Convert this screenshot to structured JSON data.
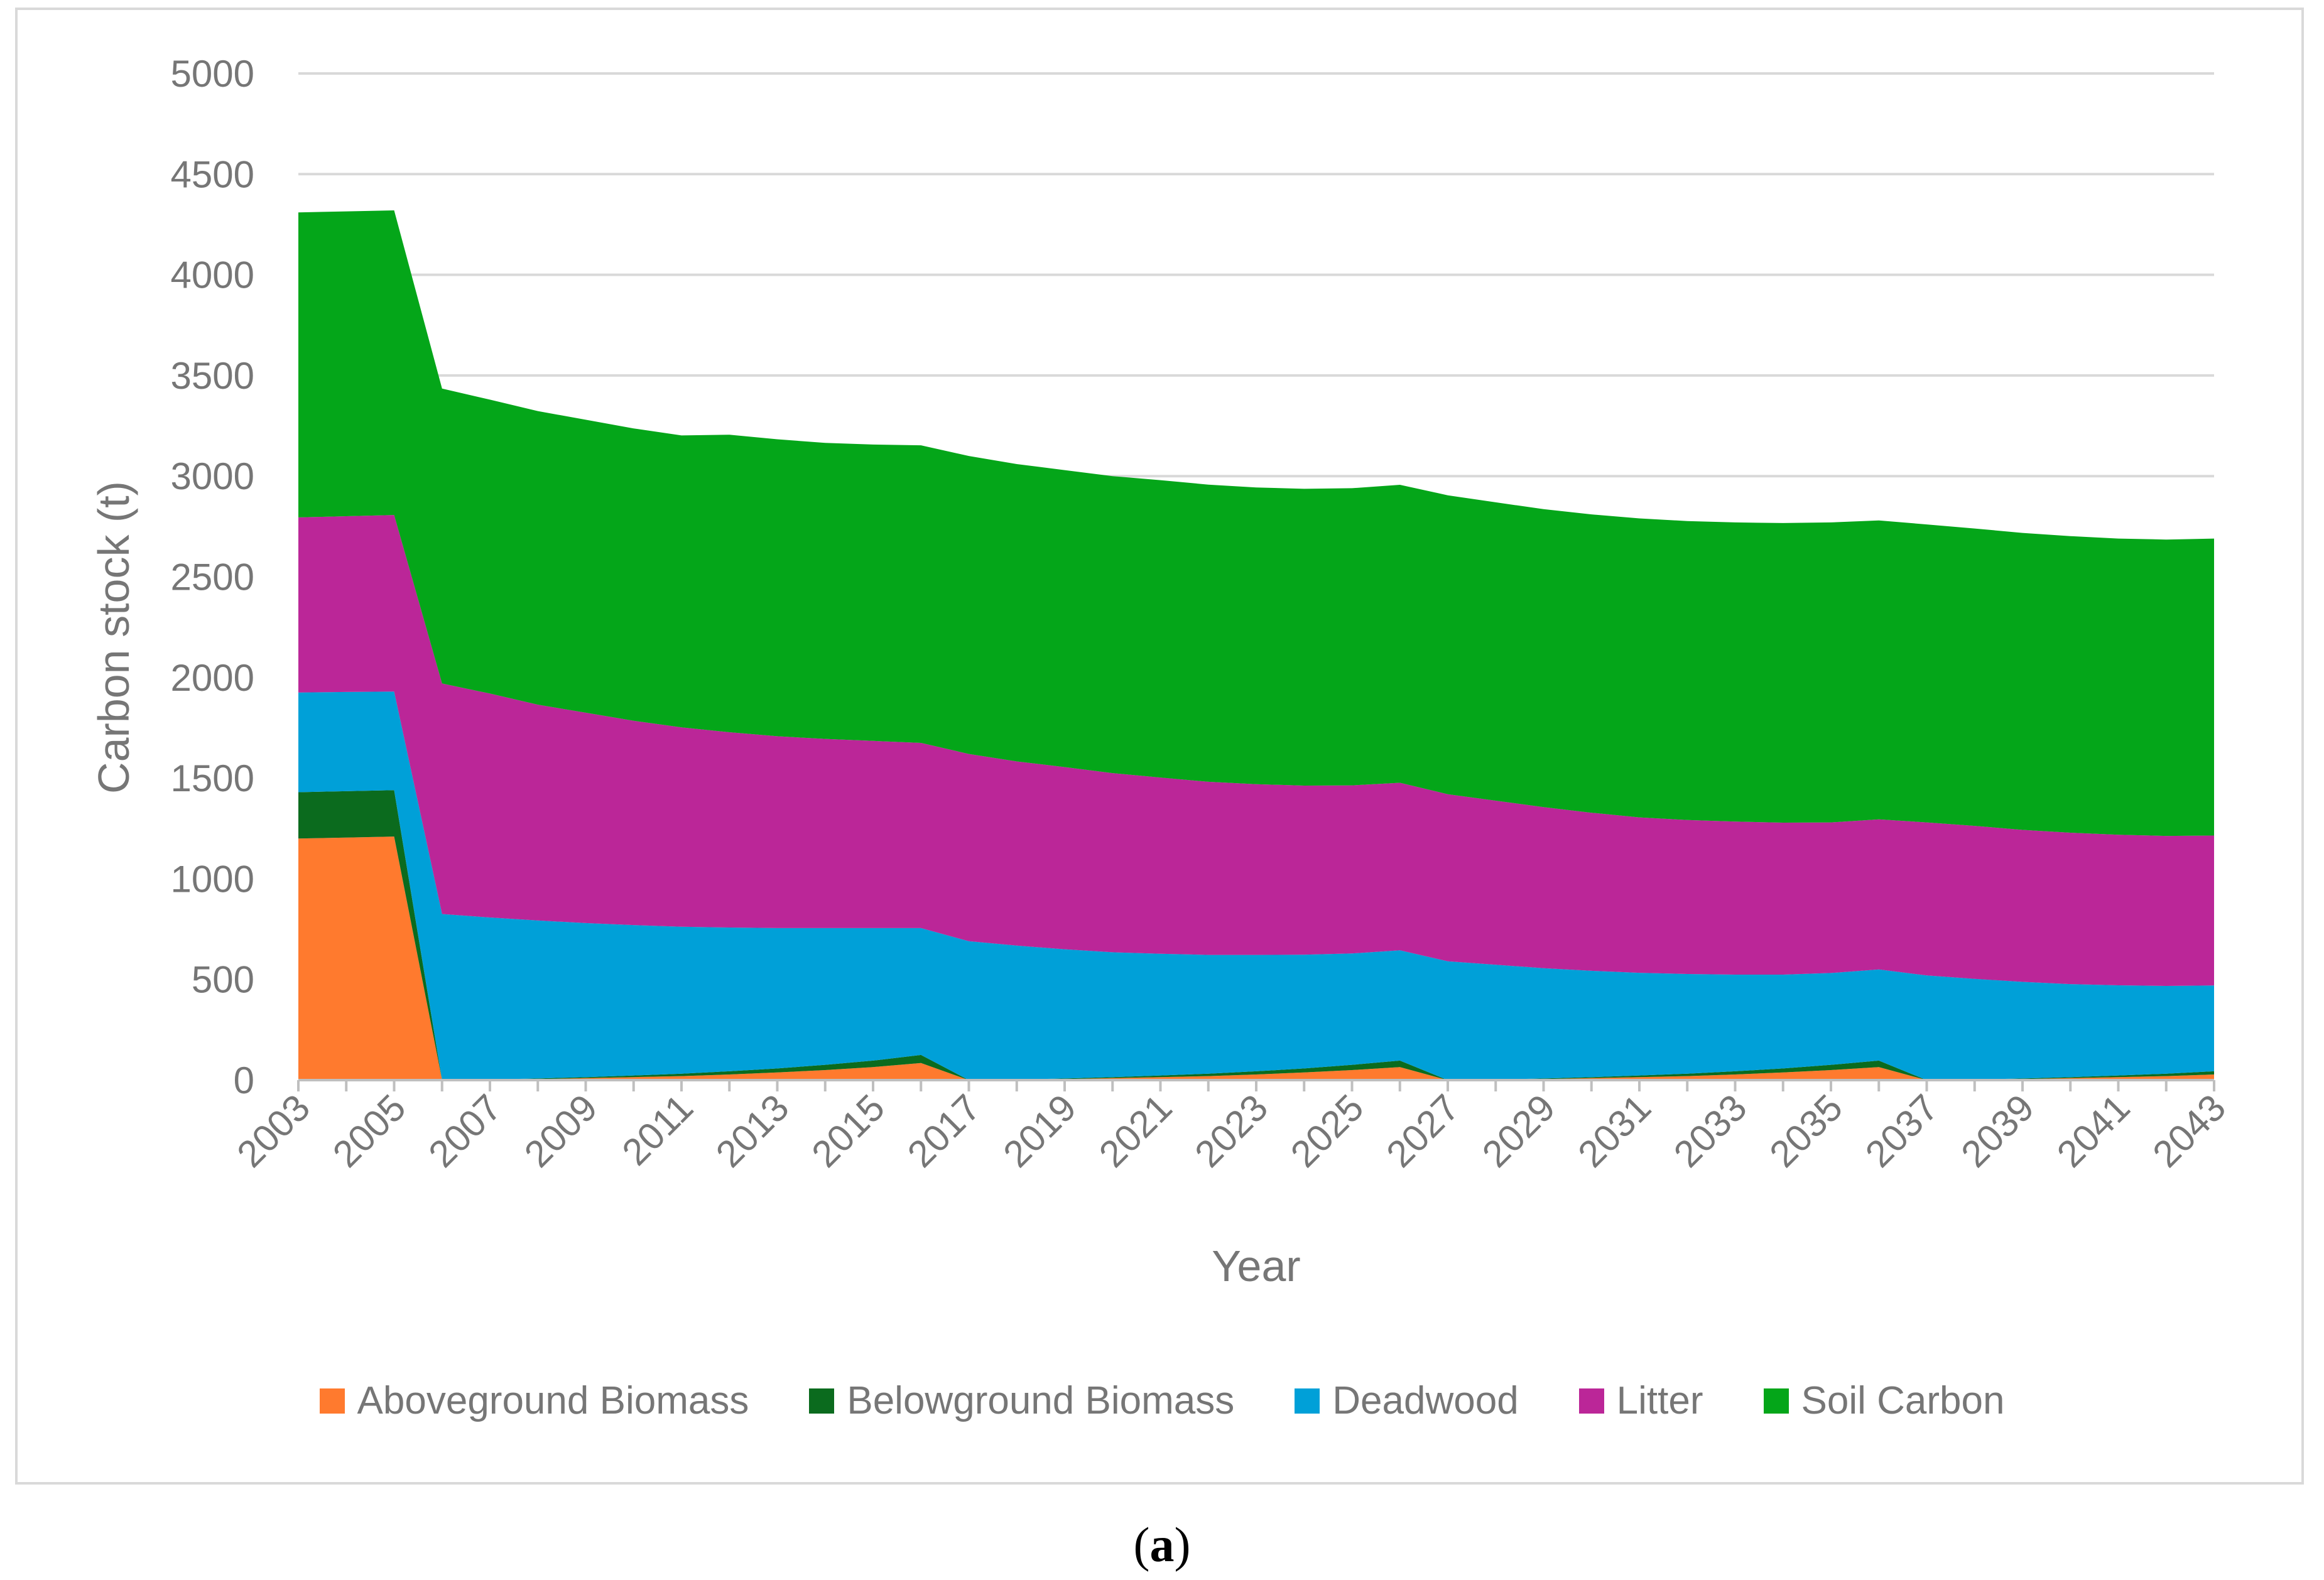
{
  "chart_data": {
    "type": "area",
    "stacked": true,
    "title": "",
    "xlabel": "Year",
    "ylabel": "Carbon stock (t)",
    "ylim": [
      0,
      5000
    ],
    "y_ticks": [
      0,
      500,
      1000,
      1500,
      2000,
      2500,
      3000,
      3500,
      4000,
      4500,
      5000
    ],
    "x": [
      2003,
      2004,
      2005,
      2006,
      2007,
      2008,
      2009,
      2010,
      2011,
      2012,
      2013,
      2014,
      2015,
      2016,
      2017,
      2018,
      2019,
      2020,
      2021,
      2022,
      2023,
      2024,
      2025,
      2026,
      2027,
      2028,
      2029,
      2030,
      2031,
      2032,
      2033,
      2034,
      2035,
      2036,
      2037,
      2038,
      2039,
      2040,
      2041,
      2042,
      2043
    ],
    "x_tick_labels": [
      "2003",
      "2005",
      "2007",
      "2009",
      "2011",
      "2013",
      "2015",
      "2017",
      "2019",
      "2021",
      "2023",
      "2025",
      "2027",
      "2029",
      "2031",
      "2033",
      "2035",
      "2037",
      "2039",
      "2041",
      "2043"
    ],
    "series": [
      {
        "name": "Aboveground Biomass",
        "color": "#ff7a2e",
        "values": [
          1200,
          1205,
          1210,
          0,
          2,
          5,
          10,
          15,
          20,
          28,
          38,
          50,
          65,
          85,
          0,
          2,
          5,
          10,
          15,
          20,
          28,
          38,
          50,
          65,
          0,
          2,
          5,
          10,
          15,
          20,
          28,
          38,
          50,
          65,
          0,
          2,
          5,
          10,
          15,
          20,
          28
        ]
      },
      {
        "name": "Belowground Biomass",
        "color": "#0b6b1e",
        "values": [
          230,
          230,
          230,
          0,
          1,
          3,
          5,
          8,
          12,
          16,
          20,
          26,
          32,
          40,
          0,
          1,
          3,
          5,
          8,
          12,
          16,
          20,
          26,
          32,
          0,
          1,
          3,
          5,
          8,
          12,
          16,
          20,
          26,
          32,
          0,
          1,
          3,
          5,
          8,
          12,
          16
        ]
      },
      {
        "name": "Deadwood",
        "color": "#00a0d8",
        "values": [
          495,
          493,
          490,
          825,
          805,
          785,
          765,
          747,
          730,
          714,
          697,
          679,
          658,
          630,
          690,
          665,
          642,
          620,
          605,
          590,
          578,
          565,
          553,
          548,
          590,
          570,
          548,
          528,
          510,
          495,
          480,
          466,
          456,
          453,
          520,
          500,
          480,
          462,
          448,
          436,
          426
        ]
      },
      {
        "name": "Litter",
        "color": "#bb2698",
        "values": [
          870,
          873,
          877,
          1145,
          1112,
          1072,
          1045,
          1015,
          990,
          970,
          953,
          940,
          930,
          920,
          930,
          915,
          905,
          890,
          875,
          860,
          848,
          840,
          835,
          832,
          830,
          815,
          800,
          785,
          772,
          765,
          760,
          755,
          748,
          745,
          760,
          760,
          755,
          752,
          748,
          745,
          745
        ]
      },
      {
        "name": "Soil Carbon",
        "color": "#04a619",
        "values": [
          1515,
          1514,
          1513,
          1465,
          1460,
          1458,
          1455,
          1452,
          1450,
          1478,
          1475,
          1470,
          1472,
          1478,
          1480,
          1477,
          1475,
          1475,
          1477,
          1476,
          1474,
          1474,
          1476,
          1480,
          1485,
          1482,
          1480,
          1482,
          1485,
          1485,
          1486,
          1488,
          1490,
          1485,
          1480,
          1477,
          1475,
          1473,
          1471,
          1472,
          1475
        ]
      }
    ],
    "grid": true,
    "legend": "bottom"
  },
  "caption": {
    "prefix": "(",
    "letter": "a",
    "suffix": ")"
  }
}
